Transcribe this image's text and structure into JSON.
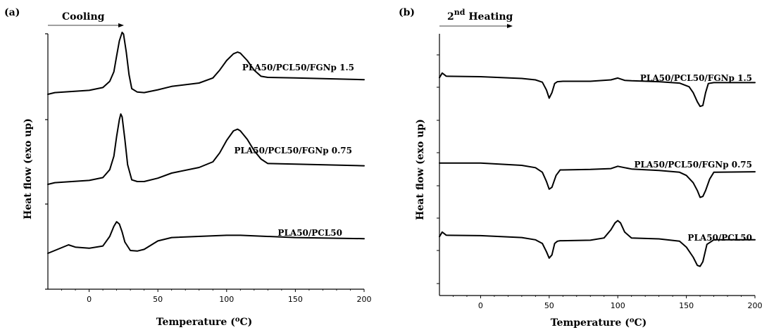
{
  "chart_data": [
    {
      "type": "line",
      "panel_label": "(a)",
      "annotation": "Cooling",
      "title": "",
      "xlabel": "Temperature (°C)",
      "xlabel_parts": {
        "before": "Temperature (",
        "sup": "o",
        "after": "C)"
      },
      "ylabel": "Heat flow (exo up)",
      "xlim": [
        -30,
        200
      ],
      "x_ticks": [
        0,
        50,
        100,
        150,
        200
      ],
      "grid": false,
      "y_axis_values": "none",
      "series": [
        {
          "name": "PLA50/PCL50/FGNp 1.5",
          "x": [
            -30,
            -25,
            0,
            10,
            15,
            18,
            20,
            22,
            24,
            25,
            27,
            29,
            31,
            35,
            40,
            50,
            60,
            80,
            90,
            95,
            100,
            105,
            108,
            110,
            115,
            120,
            125,
            130,
            150,
            200
          ],
          "y": [
            0.1,
            0.13,
            0.17,
            0.22,
            0.33,
            0.5,
            0.78,
            1.05,
            1.2,
            1.17,
            0.85,
            0.45,
            0.2,
            0.14,
            0.13,
            0.18,
            0.24,
            0.3,
            0.39,
            0.53,
            0.7,
            0.82,
            0.85,
            0.83,
            0.7,
            0.53,
            0.42,
            0.4,
            0.39,
            0.36
          ]
        },
        {
          "name": "PLA50/PCL50/FGNp 0.75",
          "x": [
            -30,
            -25,
            0,
            10,
            15,
            18,
            20,
            22,
            23,
            24,
            26,
            28,
            31,
            35,
            40,
            50,
            60,
            80,
            90,
            95,
            100,
            105,
            108,
            110,
            115,
            120,
            125,
            130,
            150,
            200
          ],
          "y": [
            0.1,
            0.13,
            0.17,
            0.22,
            0.36,
            0.6,
            0.95,
            1.25,
            1.35,
            1.3,
            0.9,
            0.45,
            0.18,
            0.15,
            0.15,
            0.21,
            0.3,
            0.4,
            0.5,
            0.66,
            0.88,
            1.05,
            1.08,
            1.05,
            0.9,
            0.7,
            0.55,
            0.47,
            0.46,
            0.43
          ]
        },
        {
          "name": "PLA50/PCL50",
          "x": [
            -30,
            -25,
            -15,
            -10,
            0,
            10,
            15,
            18,
            20,
            22,
            24,
            26,
            30,
            35,
            40,
            50,
            60,
            100,
            110,
            150,
            200
          ],
          "y": [
            0.1,
            0.15,
            0.25,
            0.21,
            0.19,
            0.23,
            0.4,
            0.58,
            0.66,
            0.62,
            0.48,
            0.3,
            0.15,
            0.14,
            0.17,
            0.32,
            0.38,
            0.42,
            0.42,
            0.38,
            0.36
          ]
        }
      ]
    },
    {
      "type": "line",
      "panel_label": "(b)",
      "annotation_parts": {
        "prefix": "2",
        "sup": "nd",
        "suffix": " Heating"
      },
      "title": "",
      "xlabel": "Temperature (°C)",
      "xlabel_parts": {
        "before": "Temperature (",
        "sup": "o",
        "after": "C)"
      },
      "ylabel": "Heat flow (exo up)",
      "xlim": [
        -30,
        200
      ],
      "x_ticks": [
        0,
        50,
        100,
        150,
        200
      ],
      "grid": false,
      "y_axis_values": "none",
      "series": [
        {
          "name": "PLA50/PCL50/FGNp 1.5",
          "x": [
            -30,
            -28,
            -25,
            0,
            30,
            40,
            45,
            48,
            50,
            52,
            54,
            56,
            60,
            80,
            95,
            100,
            105,
            110,
            130,
            145,
            152,
            155,
            158,
            160,
            162,
            164,
            166,
            170,
            200
          ],
          "y": [
            0.95,
            1.05,
            0.98,
            0.97,
            0.93,
            0.9,
            0.85,
            0.68,
            0.5,
            0.62,
            0.82,
            0.86,
            0.87,
            0.87,
            0.9,
            0.94,
            0.89,
            0.88,
            0.86,
            0.83,
            0.75,
            0.62,
            0.42,
            0.32,
            0.34,
            0.62,
            0.82,
            0.84,
            0.84
          ]
        },
        {
          "name": "PLA50/PCL50/FGNp 0.75",
          "x": [
            -30,
            0,
            30,
            40,
            45,
            48,
            50,
            52,
            55,
            58,
            60,
            80,
            95,
            100,
            105,
            110,
            130,
            145,
            150,
            155,
            158,
            160,
            162,
            164,
            167,
            170,
            200
          ],
          "y": [
            1.05,
            1.05,
            1.0,
            0.95,
            0.85,
            0.65,
            0.48,
            0.52,
            0.78,
            0.9,
            0.9,
            0.91,
            0.93,
            0.98,
            0.95,
            0.92,
            0.89,
            0.85,
            0.78,
            0.62,
            0.45,
            0.3,
            0.32,
            0.45,
            0.7,
            0.85,
            0.86
          ]
        },
        {
          "name": "PLA50/PCL50",
          "x": [
            -30,
            -28,
            -25,
            0,
            30,
            40,
            45,
            48,
            50,
            52,
            54,
            56,
            58,
            60,
            80,
            90,
            95,
            98,
            100,
            102,
            105,
            110,
            130,
            145,
            150,
            155,
            158,
            160,
            162,
            165,
            170,
            200
          ],
          "y": [
            0.95,
            1.05,
            0.98,
            0.97,
            0.93,
            0.88,
            0.8,
            0.62,
            0.48,
            0.55,
            0.8,
            0.85,
            0.86,
            0.86,
            0.87,
            0.92,
            1.1,
            1.25,
            1.3,
            1.25,
            1.05,
            0.92,
            0.9,
            0.85,
            0.72,
            0.5,
            0.32,
            0.3,
            0.4,
            0.78,
            0.88,
            0.88
          ]
        }
      ]
    }
  ]
}
